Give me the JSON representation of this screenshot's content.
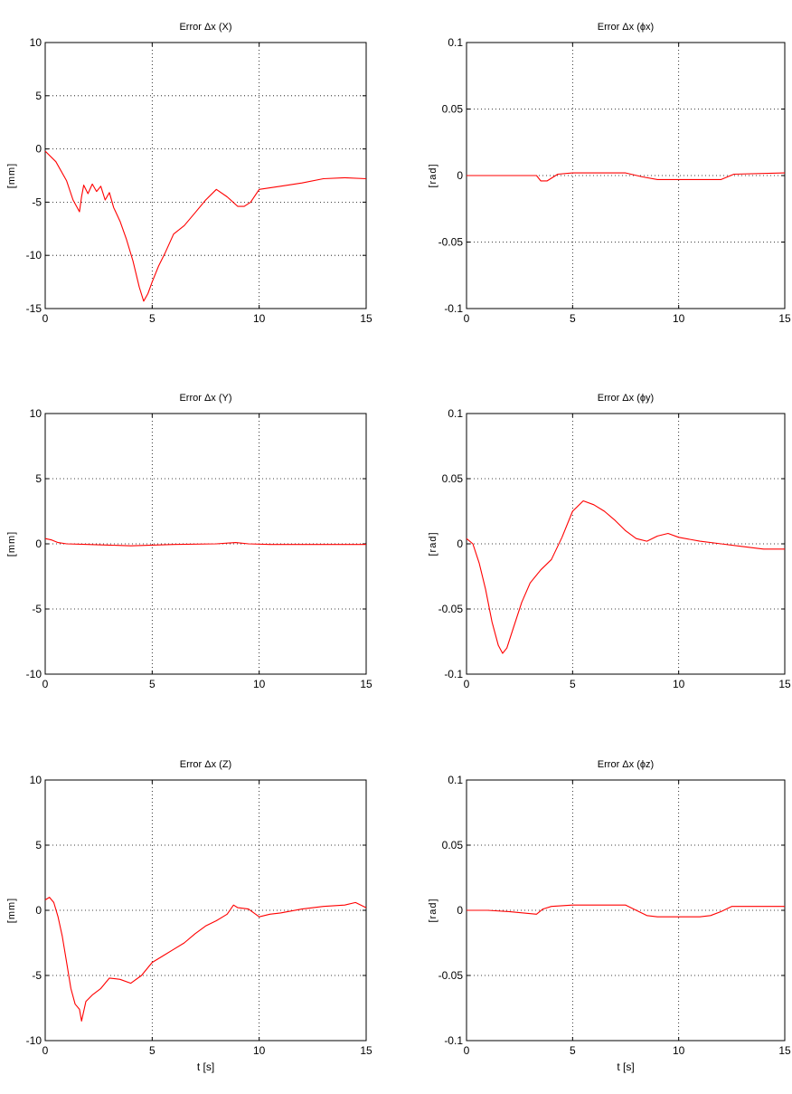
{
  "chart_data": [
    {
      "type": "line",
      "title": "Error Δx (X)",
      "xlabel": "",
      "ylabel": "[mm]",
      "xlim": [
        0,
        15
      ],
      "ylim": [
        -15,
        10
      ],
      "xticks": [
        0,
        5,
        10,
        15
      ],
      "yticks": [
        10,
        5,
        0,
        -5,
        -10,
        -15
      ],
      "grid": true,
      "series": [
        {
          "color": "#ff0000",
          "x": [
            0,
            0.5,
            1.0,
            1.3,
            1.6,
            1.7,
            1.8,
            2.0,
            2.2,
            2.4,
            2.6,
            2.8,
            3.0,
            3.2,
            3.5,
            3.8,
            4.1,
            4.4,
            4.6,
            4.8,
            5.0,
            5.3,
            5.6,
            6.0,
            6.5,
            7.0,
            7.5,
            8.0,
            8.5,
            9.0,
            9.3,
            9.6,
            10.0,
            11.0,
            12.0,
            13.0,
            14.0,
            15.0
          ],
          "y": [
            -0.2,
            -1.2,
            -3.0,
            -4.8,
            -5.9,
            -4.5,
            -3.4,
            -4.2,
            -3.3,
            -4.0,
            -3.5,
            -4.8,
            -4.1,
            -5.5,
            -6.8,
            -8.5,
            -10.5,
            -13.0,
            -14.3,
            -13.6,
            -12.5,
            -11.0,
            -9.8,
            -8.0,
            -7.2,
            -6.0,
            -4.8,
            -3.8,
            -4.5,
            -5.4,
            -5.4,
            -5.0,
            -3.8,
            -3.5,
            -3.2,
            -2.8,
            -2.7,
            -2.8
          ]
        }
      ]
    },
    {
      "type": "line",
      "title": "Error Δx (ϕx)",
      "xlabel": "",
      "ylabel": "[rad]",
      "xlim": [
        0,
        15
      ],
      "ylim": [
        -0.1,
        0.1
      ],
      "xticks": [
        0,
        5,
        10,
        15
      ],
      "yticks": [
        0.1,
        0.05,
        0,
        -0.05,
        -0.1
      ],
      "grid": true,
      "series": [
        {
          "color": "#ff0000",
          "x": [
            0,
            3.3,
            3.5,
            3.8,
            4.3,
            5.0,
            7.5,
            8.3,
            9.0,
            12.0,
            12.6,
            15.0
          ],
          "y": [
            0,
            0,
            -0.004,
            -0.004,
            0.001,
            0.002,
            0.002,
            -0.001,
            -0.003,
            -0.003,
            0.001,
            0.002
          ]
        }
      ]
    },
    {
      "type": "line",
      "title": "Error Δx (Y)",
      "xlabel": "",
      "ylabel": "[mm]",
      "xlim": [
        0,
        15
      ],
      "ylim": [
        -10,
        10
      ],
      "xticks": [
        0,
        5,
        10,
        15
      ],
      "yticks": [
        10,
        5,
        0,
        -5,
        -10
      ],
      "grid": true,
      "series": [
        {
          "color": "#ff0000",
          "x": [
            0,
            0.3,
            0.6,
            1.0,
            2.0,
            3.0,
            4.0,
            5.0,
            6.0,
            8.0,
            8.9,
            9.5,
            10.5,
            12.0,
            15.0
          ],
          "y": [
            0.4,
            0.3,
            0.1,
            0,
            -0.05,
            -0.1,
            -0.15,
            -0.1,
            -0.05,
            0,
            0.1,
            0,
            -0.05,
            -0.05,
            -0.05
          ]
        }
      ]
    },
    {
      "type": "line",
      "title": "Error Δx (ϕy)",
      "xlabel": "",
      "ylabel": "[rad]",
      "xlim": [
        0,
        15
      ],
      "ylim": [
        -0.1,
        0.1
      ],
      "xticks": [
        0,
        5,
        10,
        15
      ],
      "yticks": [
        0.1,
        0.05,
        0,
        -0.05,
        -0.1
      ],
      "grid": true,
      "series": [
        {
          "color": "#ff0000",
          "x": [
            0,
            0.3,
            0.6,
            0.9,
            1.2,
            1.5,
            1.7,
            1.9,
            2.2,
            2.6,
            3.0,
            3.5,
            4.0,
            4.5,
            5.0,
            5.5,
            6.0,
            6.5,
            7.0,
            7.5,
            8.0,
            8.5,
            9.0,
            9.5,
            10.0,
            11.0,
            12.0,
            13.0,
            14.0,
            15.0
          ],
          "y": [
            0.004,
            0.0,
            -0.015,
            -0.035,
            -0.06,
            -0.078,
            -0.084,
            -0.08,
            -0.065,
            -0.045,
            -0.03,
            -0.02,
            -0.012,
            0.005,
            0.025,
            0.033,
            0.03,
            0.025,
            0.018,
            0.01,
            0.004,
            0.002,
            0.006,
            0.008,
            0.005,
            0.002,
            0.0,
            -0.002,
            -0.004,
            -0.004
          ]
        }
      ]
    },
    {
      "type": "line",
      "title": "Error Δx (Z)",
      "xlabel": "t [s]",
      "ylabel": "[mm]",
      "xlim": [
        0,
        15
      ],
      "ylim": [
        -10,
        10
      ],
      "xticks": [
        0,
        5,
        10,
        15
      ],
      "yticks": [
        10,
        5,
        0,
        -5,
        -10
      ],
      "grid": true,
      "series": [
        {
          "color": "#ff0000",
          "x": [
            0,
            0.2,
            0.4,
            0.6,
            0.8,
            1.0,
            1.2,
            1.4,
            1.6,
            1.7,
            1.9,
            2.2,
            2.6,
            3.0,
            3.5,
            4.0,
            4.5,
            5.0,
            5.5,
            6.0,
            6.5,
            7.0,
            7.5,
            8.0,
            8.5,
            8.8,
            9.0,
            9.5,
            10.0,
            10.5,
            11.0,
            12.0,
            13.0,
            14.0,
            14.5,
            15.0
          ],
          "y": [
            0.8,
            1.0,
            0.6,
            -0.5,
            -2.0,
            -4.0,
            -6.0,
            -7.2,
            -7.6,
            -8.5,
            -7.0,
            -6.5,
            -6.0,
            -5.2,
            -5.3,
            -5.6,
            -5.0,
            -4.0,
            -3.5,
            -3.0,
            -2.5,
            -1.8,
            -1.2,
            -0.8,
            -0.3,
            0.4,
            0.2,
            0.1,
            -0.5,
            -0.3,
            -0.2,
            0.1,
            0.3,
            0.4,
            0.6,
            0.2
          ]
        }
      ]
    },
    {
      "type": "line",
      "title": "Error Δx (ϕz)",
      "xlabel": "t [s]",
      "ylabel": "[rad]",
      "xlim": [
        0,
        15
      ],
      "ylim": [
        -0.1,
        0.1
      ],
      "xticks": [
        0,
        5,
        10,
        15
      ],
      "yticks": [
        0.1,
        0.05,
        0,
        -0.05,
        -0.1
      ],
      "grid": true,
      "series": [
        {
          "color": "#ff0000",
          "x": [
            0,
            1.0,
            2.0,
            3.3,
            3.6,
            4.0,
            5.0,
            6.0,
            7.5,
            8.0,
            8.5,
            9.0,
            10.0,
            11.0,
            11.5,
            12.0,
            12.5,
            15.0
          ],
          "y": [
            0,
            0,
            -0.001,
            -0.003,
            0.001,
            0.003,
            0.004,
            0.004,
            0.004,
            0.0,
            -0.004,
            -0.005,
            -0.005,
            -0.005,
            -0.004,
            -0.001,
            0.003,
            0.003
          ]
        }
      ]
    }
  ]
}
